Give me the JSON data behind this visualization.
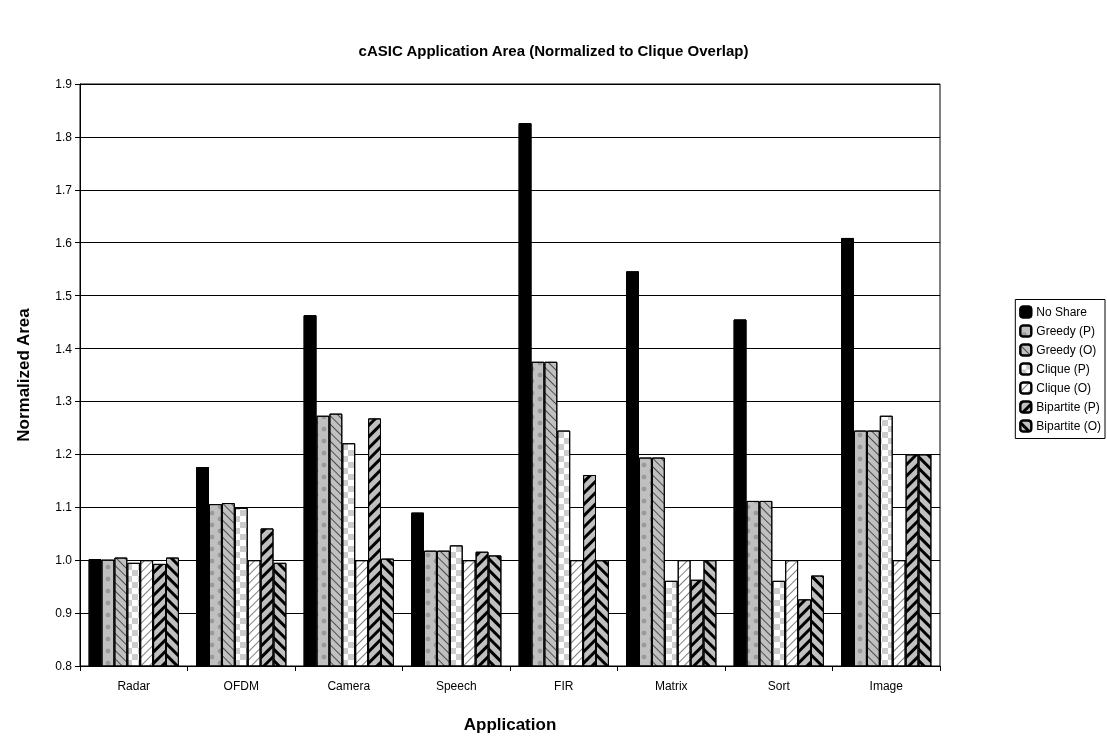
{
  "chart_data": {
    "type": "bar",
    "title": "cASIC Application Area (Normalized to Clique Overlap)",
    "xlabel": "Application",
    "ylabel": "Normalized Area",
    "categories": [
      "Radar",
      "OFDM",
      "Camera",
      "Speech",
      "FIR",
      "Matrix",
      "Sort",
      "Image"
    ],
    "series": [
      {
        "name": "No Share",
        "color": "#000000",
        "values": [
          1.002,
          1.176,
          1.463,
          1.09,
          1.826,
          1.546,
          1.455,
          1.609
        ]
      },
      {
        "name": "Greedy (P)",
        "color": "#c0c0c0",
        "values": [
          1.001,
          1.106,
          1.273,
          1.018,
          1.375,
          1.194,
          1.112,
          1.245
        ]
      },
      {
        "name": "Greedy (O)",
        "color": "#c0c0c0",
        "values": [
          1.005,
          1.108,
          1.277,
          1.018,
          1.375,
          1.194,
          1.112,
          1.245
        ]
      },
      {
        "name": "Clique (P)",
        "color": "#ffffff",
        "values": [
          0.995,
          1.099,
          1.221,
          1.028,
          1.245,
          0.961,
          0.961,
          1.273
        ]
      },
      {
        "name": "Clique (O)",
        "color": "#ffffff",
        "values": [
          1.0,
          1.0,
          1.0,
          1.0,
          1.0,
          1.0,
          1.0,
          1.0
        ]
      },
      {
        "name": "Bipartite (P)",
        "color": "#c0c0c0",
        "values": [
          0.993,
          1.06,
          1.268,
          1.016,
          1.161,
          0.963,
          0.926,
          1.2
        ]
      },
      {
        "name": "Bipartite (O)",
        "color": "#c0c0c0",
        "values": [
          1.005,
          0.995,
          1.003,
          1.009,
          1.0,
          1.0,
          0.971,
          1.2
        ]
      }
    ],
    "ylim": [
      0.8,
      1.9
    ],
    "yticks": [
      0.8,
      0.9,
      {
        "value": 1.0,
        "label": "1.0"
      },
      1.1,
      1.2,
      1.3,
      1.4,
      1.5,
      1.6,
      1.7,
      1.8,
      1.9
    ],
    "grid": "y",
    "legend": "right"
  }
}
